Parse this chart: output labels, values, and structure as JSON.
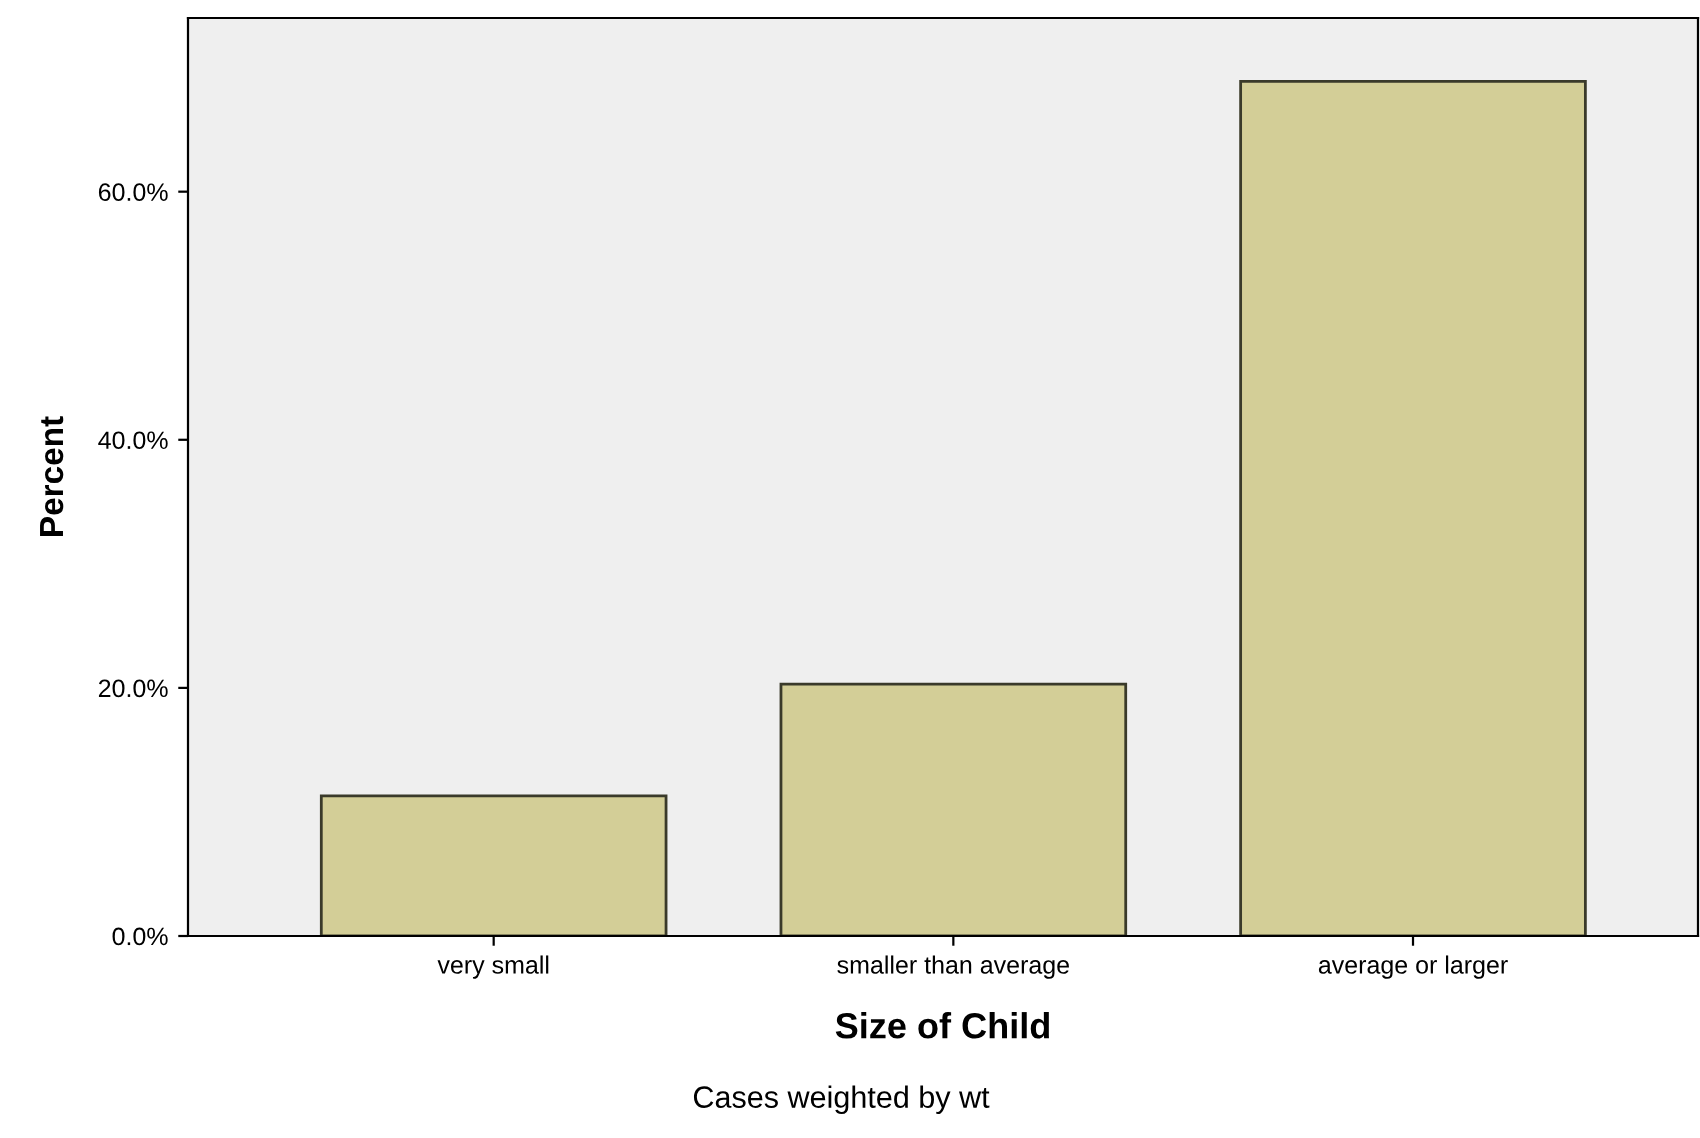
{
  "chart_data": {
    "type": "bar",
    "xlabel": "Size of Child",
    "ylabel": "Percent",
    "categories": [
      "very small",
      "smaller than average",
      "average or larger"
    ],
    "values": [
      11.3,
      20.3,
      68.9
    ],
    "color": "#d3ce97",
    "ylim": [
      0,
      74
    ],
    "yticks": [
      {
        "value": 0,
        "label": "0.0%"
      },
      {
        "value": 20,
        "label": "20.0%"
      },
      {
        "value": 40,
        "label": "40.0%"
      },
      {
        "value": 60,
        "label": "60.0%"
      }
    ],
    "grid": false,
    "annotations": [
      "Cases weighted by wt"
    ]
  }
}
